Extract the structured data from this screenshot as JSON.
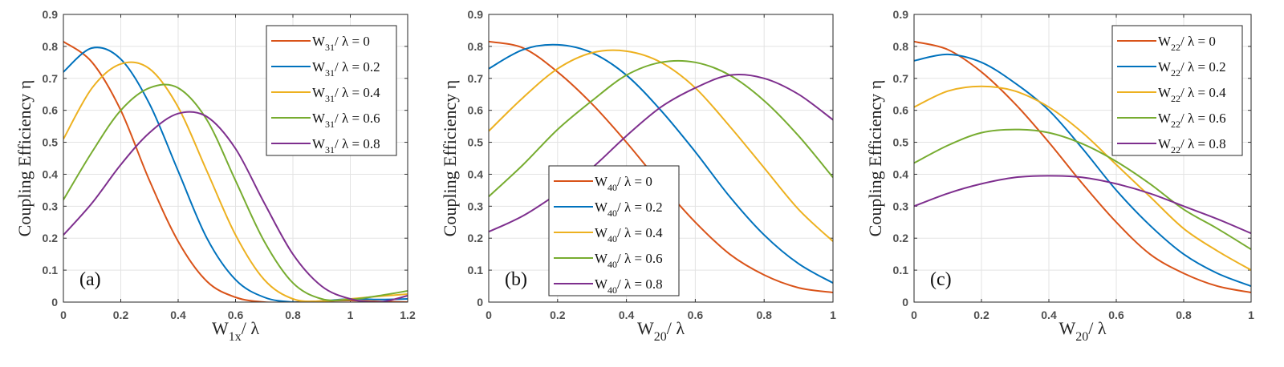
{
  "chart_data": [
    {
      "type": "line",
      "panel_label": "(a)",
      "xlabel": {
        "main": "W",
        "sub": "1x",
        "rest": "/ λ"
      },
      "ylabel": "Coupling Efficiency η",
      "xlim": [
        0,
        1.2
      ],
      "ylim": [
        0,
        0.9
      ],
      "xticks": [
        "0",
        "0.2",
        "0.4",
        "0.6",
        "0.8",
        "1",
        "1.2"
      ],
      "yticks": [
        "0",
        "0.1",
        "0.2",
        "0.3",
        "0.4",
        "0.5",
        "0.6",
        "0.7",
        "0.8",
        "0.9"
      ],
      "grid": true,
      "legend_position": "top-right",
      "x": [
        0,
        0.1,
        0.2,
        0.3,
        0.4,
        0.5,
        0.6,
        0.7,
        0.8,
        0.9,
        1.0,
        1.1,
        1.2
      ],
      "series": [
        {
          "label_main": "W",
          "label_sub": "31",
          "label_rest": "/ λ = 0",
          "color": "#D95319",
          "values": [
            0.815,
            0.75,
            0.6,
            0.38,
            0.19,
            0.065,
            0.015,
            0.0,
            0.0,
            0.003,
            0.005,
            0.002,
            0.0
          ]
        },
        {
          "label_main": "W",
          "label_sub": "31",
          "label_rest": "/ λ = 0.2",
          "color": "#0072BD",
          "values": [
            0.72,
            0.795,
            0.76,
            0.62,
            0.41,
            0.2,
            0.07,
            0.015,
            0.0,
            0.003,
            0.01,
            0.008,
            0.01
          ]
        },
        {
          "label_main": "W",
          "label_sub": "31",
          "label_rest": "/ λ = 0.4",
          "color": "#EDB120",
          "values": [
            0.51,
            0.67,
            0.745,
            0.73,
            0.61,
            0.41,
            0.21,
            0.07,
            0.01,
            0.003,
            0.01,
            0.018,
            0.025
          ]
        },
        {
          "label_main": "W",
          "label_sub": "31",
          "label_rest": "/ λ = 0.6",
          "color": "#77AC30",
          "values": [
            0.32,
            0.47,
            0.6,
            0.67,
            0.67,
            0.57,
            0.38,
            0.19,
            0.06,
            0.01,
            0.008,
            0.02,
            0.035
          ]
        },
        {
          "label_main": "W",
          "label_sub": "31",
          "label_rest": "/ λ = 0.8",
          "color": "#7E2F8E",
          "values": [
            0.21,
            0.31,
            0.43,
            0.53,
            0.59,
            0.58,
            0.48,
            0.31,
            0.15,
            0.05,
            0.01,
            0.0,
            0.02
          ]
        }
      ]
    },
    {
      "type": "line",
      "panel_label": "(b)",
      "xlabel": {
        "main": "W",
        "sub": "20",
        "rest": "/ λ"
      },
      "ylabel": "Coupling Efficiency η",
      "xlim": [
        0,
        1
      ],
      "ylim": [
        0,
        0.9
      ],
      "xticks": [
        "0",
        "0.2",
        "0.4",
        "0.6",
        "0.8",
        "1"
      ],
      "yticks": [
        "0",
        "0.1",
        "0.2",
        "0.3",
        "0.4",
        "0.5",
        "0.6",
        "0.7",
        "0.8",
        "0.9"
      ],
      "grid": true,
      "legend_position": "bottom-center",
      "x": [
        0,
        0.1,
        0.2,
        0.3,
        0.4,
        0.5,
        0.6,
        0.7,
        0.8,
        0.9,
        1.0
      ],
      "series": [
        {
          "label_main": "W",
          "label_sub": "40",
          "label_rest": "/ λ = 0",
          "color": "#D95319",
          "values": [
            0.815,
            0.795,
            0.72,
            0.62,
            0.5,
            0.37,
            0.25,
            0.15,
            0.085,
            0.045,
            0.03
          ]
        },
        {
          "label_main": "W",
          "label_sub": "40",
          "label_rest": "/ λ = 0.2",
          "color": "#0072BD",
          "values": [
            0.73,
            0.79,
            0.805,
            0.78,
            0.71,
            0.6,
            0.47,
            0.33,
            0.21,
            0.12,
            0.06
          ]
        },
        {
          "label_main": "W",
          "label_sub": "40",
          "label_rest": "/ λ = 0.4",
          "color": "#EDB120",
          "values": [
            0.535,
            0.64,
            0.73,
            0.78,
            0.785,
            0.75,
            0.67,
            0.55,
            0.42,
            0.29,
            0.19
          ]
        },
        {
          "label_main": "W",
          "label_sub": "40",
          "label_rest": "/ λ = 0.6",
          "color": "#77AC30",
          "values": [
            0.33,
            0.43,
            0.54,
            0.63,
            0.71,
            0.75,
            0.75,
            0.71,
            0.63,
            0.52,
            0.39
          ]
        },
        {
          "label_main": "W",
          "label_sub": "40",
          "label_rest": "/ λ = 0.8",
          "color": "#7E2F8E",
          "values": [
            0.22,
            0.27,
            0.34,
            0.42,
            0.52,
            0.61,
            0.67,
            0.71,
            0.7,
            0.65,
            0.57
          ]
        }
      ]
    },
    {
      "type": "line",
      "panel_label": "(c)",
      "xlabel": {
        "main": "W",
        "sub": "20",
        "rest": "/ λ"
      },
      "ylabel": "Coupling Efficiency η",
      "xlim": [
        0,
        1
      ],
      "ylim": [
        0,
        0.9
      ],
      "xticks": [
        "0",
        "0.2",
        "0.4",
        "0.6",
        "0.8",
        "1"
      ],
      "yticks": [
        "0",
        "0.1",
        "0.2",
        "0.3",
        "0.4",
        "0.5",
        "0.6",
        "0.7",
        "0.8",
        "0.9"
      ],
      "grid": true,
      "legend_position": "top-right",
      "x": [
        0,
        0.1,
        0.2,
        0.3,
        0.4,
        0.5,
        0.6,
        0.7,
        0.8,
        0.9,
        1.0
      ],
      "series": [
        {
          "label_main": "W",
          "label_sub": "22",
          "label_rest": "/ λ = 0",
          "color": "#D95319",
          "values": [
            0.815,
            0.79,
            0.72,
            0.62,
            0.5,
            0.37,
            0.25,
            0.15,
            0.09,
            0.05,
            0.03
          ]
        },
        {
          "label_main": "W",
          "label_sub": "22",
          "label_rest": "/ λ = 0.2",
          "color": "#0072BD",
          "values": [
            0.755,
            0.775,
            0.75,
            0.685,
            0.6,
            0.48,
            0.35,
            0.24,
            0.15,
            0.09,
            0.05
          ]
        },
        {
          "label_main": "W",
          "label_sub": "22",
          "label_rest": "/ λ = 0.4",
          "color": "#EDB120",
          "values": [
            0.61,
            0.66,
            0.675,
            0.66,
            0.61,
            0.53,
            0.43,
            0.33,
            0.23,
            0.16,
            0.1
          ]
        },
        {
          "label_main": "W",
          "label_sub": "22",
          "label_rest": "/ λ = 0.6",
          "color": "#77AC30",
          "values": [
            0.435,
            0.49,
            0.53,
            0.54,
            0.53,
            0.495,
            0.44,
            0.37,
            0.29,
            0.23,
            0.165
          ]
        },
        {
          "label_main": "W",
          "label_sub": "22",
          "label_rest": "/ λ = 0.8",
          "color": "#7E2F8E",
          "values": [
            0.3,
            0.34,
            0.37,
            0.39,
            0.395,
            0.39,
            0.37,
            0.34,
            0.3,
            0.26,
            0.215
          ]
        }
      ]
    }
  ]
}
